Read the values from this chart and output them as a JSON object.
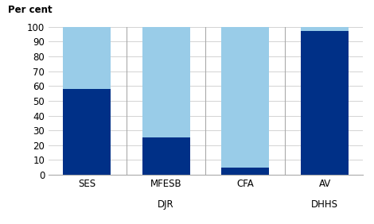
{
  "categories": [
    "SES",
    "MFESB",
    "CFA",
    "AV"
  ],
  "sub_labels": [
    "",
    "DJR",
    "",
    "DHHS"
  ],
  "reported": [
    58,
    25,
    5,
    97
  ],
  "not_reported": [
    42,
    75,
    95,
    3
  ],
  "color_reported": "#003087",
  "color_not_reported": "#99cce8",
  "ylabel": "Per cent",
  "ylim": [
    0,
    100
  ],
  "yticks": [
    0,
    10,
    20,
    30,
    40,
    50,
    60,
    70,
    80,
    90,
    100
  ],
  "bar_width": 0.6,
  "figsize": [
    4.7,
    2.82
  ],
  "dpi": 100
}
